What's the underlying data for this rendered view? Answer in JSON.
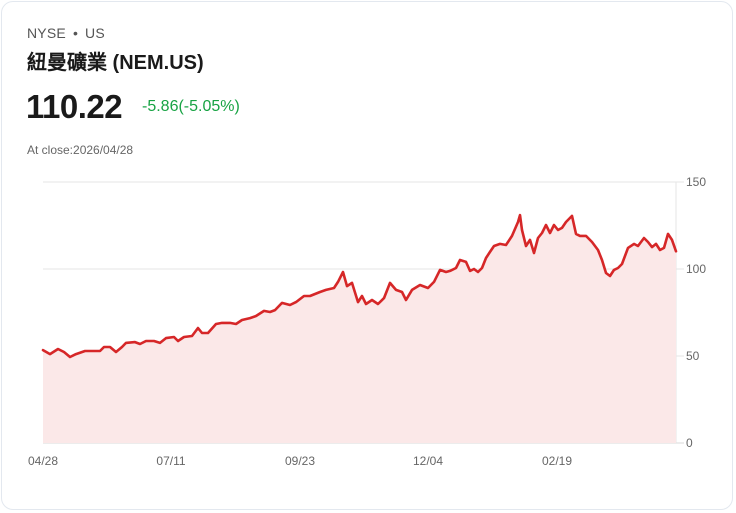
{
  "header": {
    "exchange": "NYSE",
    "separator": "•",
    "market": "US",
    "name": "紐曼礦業 (NEM.US)",
    "price": "110.22",
    "change": "-5.86(-5.05%)",
    "close_label": "At close:2026/04/28"
  },
  "colors": {
    "line": "#d62728",
    "fill": "#fbe8e8",
    "change": "#18a344",
    "grid": "#e5e5e5"
  },
  "chart_data": {
    "type": "area",
    "title": "紐曼礦業 (NEM.US)",
    "xlabel": "",
    "ylabel": "",
    "ylim": [
      0,
      150
    ],
    "y_ticks": [
      0,
      50,
      100,
      150
    ],
    "x_tick_labels": [
      "04/28",
      "07/11",
      "09/23",
      "12/04",
      "02/19"
    ],
    "grid": true,
    "legend": "none",
    "series": [
      {
        "name": "NEM.US",
        "points": [
          [
            0,
            53.4
          ],
          [
            7,
            51.1
          ],
          [
            15,
            54.0
          ],
          [
            21,
            52.3
          ],
          [
            27,
            49.4
          ],
          [
            33,
            51.1
          ],
          [
            42,
            52.9
          ],
          [
            50,
            52.9
          ],
          [
            57,
            52.9
          ],
          [
            61,
            55.2
          ],
          [
            67,
            55.2
          ],
          [
            73,
            52.3
          ],
          [
            79,
            55.2
          ],
          [
            83,
            57.5
          ],
          [
            92,
            58.0
          ],
          [
            97,
            56.9
          ],
          [
            103,
            58.6
          ],
          [
            111,
            58.6
          ],
          [
            117,
            57.5
          ],
          [
            123,
            60.3
          ],
          [
            131,
            60.9
          ],
          [
            135,
            58.6
          ],
          [
            141,
            60.9
          ],
          [
            149,
            61.5
          ],
          [
            155,
            66.1
          ],
          [
            159,
            63.2
          ],
          [
            165,
            63.2
          ],
          [
            173,
            68.4
          ],
          [
            179,
            69.0
          ],
          [
            187,
            69.0
          ],
          [
            193,
            68.4
          ],
          [
            199,
            70.7
          ],
          [
            207,
            71.8
          ],
          [
            213,
            73.0
          ],
          [
            221,
            75.9
          ],
          [
            227,
            75.3
          ],
          [
            232,
            76.4
          ],
          [
            239,
            80.5
          ],
          [
            247,
            79.3
          ],
          [
            253,
            81.0
          ],
          [
            261,
            84.5
          ],
          [
            267,
            84.5
          ],
          [
            277,
            86.8
          ],
          [
            283,
            88.0
          ],
          [
            291,
            89.1
          ],
          [
            295,
            92.6
          ],
          [
            300,
            98.3
          ],
          [
            304,
            90.2
          ],
          [
            309,
            92.0
          ],
          [
            315,
            81.0
          ],
          [
            319,
            84.5
          ],
          [
            323,
            79.9
          ],
          [
            329,
            82.2
          ],
          [
            335,
            79.9
          ],
          [
            341,
            83.3
          ],
          [
            347,
            92.0
          ],
          [
            353,
            88.0
          ],
          [
            359,
            86.8
          ],
          [
            363,
            82.2
          ],
          [
            369,
            88.0
          ],
          [
            377,
            90.8
          ],
          [
            385,
            89.1
          ],
          [
            391,
            92.6
          ],
          [
            397,
            99.5
          ],
          [
            403,
            98.3
          ],
          [
            407,
            98.9
          ],
          [
            413,
            100.6
          ],
          [
            417,
            105.2
          ],
          [
            423,
            104.1
          ],
          [
            427,
            98.9
          ],
          [
            431,
            100.0
          ],
          [
            435,
            98.3
          ],
          [
            439,
            100.6
          ],
          [
            443,
            106.3
          ],
          [
            447,
            109.8
          ],
          [
            451,
            113.2
          ],
          [
            457,
            114.4
          ],
          [
            463,
            113.8
          ],
          [
            469,
            119.0
          ],
          [
            475,
            127.0
          ],
          [
            477,
            131.0
          ],
          [
            479,
            122.4
          ],
          [
            483,
            113.2
          ],
          [
            487,
            116.7
          ],
          [
            491,
            109.2
          ],
          [
            495,
            117.8
          ],
          [
            499,
            120.7
          ],
          [
            503,
            125.3
          ],
          [
            507,
            120.7
          ],
          [
            511,
            125.3
          ],
          [
            515,
            122.4
          ],
          [
            519,
            123.6
          ],
          [
            523,
            127.0
          ],
          [
            529,
            130.5
          ],
          [
            533,
            120.2
          ],
          [
            537,
            119.0
          ],
          [
            543,
            119.0
          ],
          [
            549,
            115.5
          ],
          [
            555,
            110.9
          ],
          [
            559,
            105.2
          ],
          [
            563,
            97.7
          ],
          [
            567,
            96.0
          ],
          [
            571,
            99.5
          ],
          [
            575,
            100.6
          ],
          [
            579,
            102.9
          ],
          [
            585,
            112.1
          ],
          [
            591,
            114.4
          ],
          [
            595,
            113.2
          ],
          [
            601,
            117.8
          ],
          [
            605,
            115.5
          ],
          [
            609,
            112.6
          ],
          [
            613,
            114.4
          ],
          [
            617,
            110.9
          ],
          [
            621,
            112.1
          ],
          [
            625,
            120.2
          ],
          [
            629,
            116.7
          ],
          [
            633,
            110.2
          ]
        ]
      }
    ],
    "last_value": 110.22
  }
}
